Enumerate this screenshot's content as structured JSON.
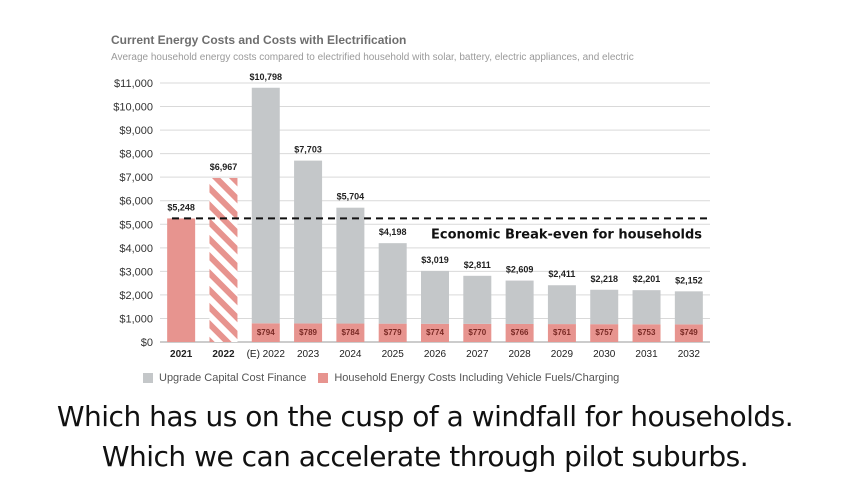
{
  "chart_data": {
    "type": "bar",
    "title": "Current Energy Costs and Costs with Electrification",
    "subtitle": "Average household energy costs compared to electrified household with solar, battery, electric appliances, and electric",
    "categories": [
      "2021",
      "2022",
      "(E) 2022",
      "2023",
      "2024",
      "2025",
      "2026",
      "2027",
      "2028",
      "2029",
      "2030",
      "2031",
      "2032"
    ],
    "bold_categories": [
      "2021",
      "2022"
    ],
    "series": [
      {
        "name": "Upgrade Capital Cost Finance",
        "color": "#c4c7c9",
        "values": [
          0,
          0,
          10004,
          6914,
          4920,
          3419,
          2245,
          2041,
          1843,
          1650,
          1461,
          1448,
          1403
        ]
      },
      {
        "name": "Household Energy Costs Including Vehicle Fuels/Charging",
        "color": "#e7948f",
        "values": [
          5248,
          6967,
          794,
          789,
          784,
          779,
          774,
          770,
          766,
          761,
          757,
          753,
          749
        ],
        "hatched": [
          false,
          true,
          false,
          false,
          false,
          false,
          false,
          false,
          false,
          false,
          false,
          false,
          false
        ]
      }
    ],
    "total_labels": [
      "$5,248",
      "$6,967",
      "$10,798",
      "$7,703",
      "$5,704",
      "$4,198",
      "$3,019",
      "$2,811",
      "$2,609",
      "$2,411",
      "$2,218",
      "$2,201",
      "$2,152"
    ],
    "energy_labels": [
      "",
      "",
      "$794",
      "$789",
      "$784",
      "$779",
      "$774",
      "$770",
      "$766",
      "$761",
      "$757",
      "$753",
      "$749"
    ],
    "ylim": [
      0,
      11000
    ],
    "yticks": [
      0,
      1000,
      2000,
      3000,
      4000,
      5000,
      6000,
      7000,
      8000,
      9000,
      10000,
      11000
    ],
    "ytick_labels": [
      "$0",
      "$1,000",
      "$2,000",
      "$3,000",
      "$4,000",
      "$5,000",
      "$6,000",
      "$7,000",
      "$8,000",
      "$9,000",
      "$10,000",
      "$11,000"
    ],
    "grid": true,
    "legend_position": "bottom-left",
    "annotation": {
      "text": "Economic Break-even for households",
      "value": 5248
    }
  },
  "captions": {
    "line1": "Which has us on the cusp of a windfall for households.",
    "line2": "Which we can accelerate through pilot suburbs."
  }
}
